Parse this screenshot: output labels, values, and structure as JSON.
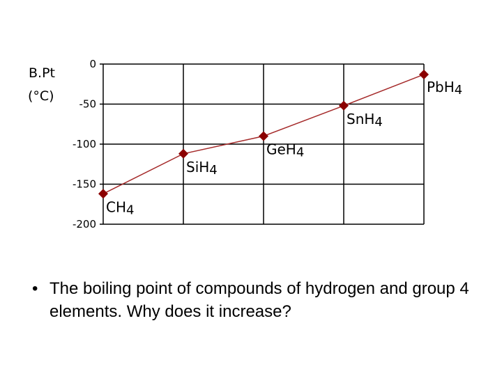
{
  "chart_data": {
    "type": "line",
    "ylabel_line1": "B.Pt",
    "ylabel_line2": "(°C)",
    "ylim": [
      -200,
      0
    ],
    "yticks": [
      0,
      -50,
      -100,
      -150,
      -200
    ],
    "ytick_labels": [
      "0",
      "-50",
      "-100",
      "-150",
      "-200"
    ],
    "grid": true,
    "line_color": "#a52a2a",
    "marker_color": "#8b0000",
    "points": [
      {
        "label": "CH",
        "sub": "4",
        "y": -162
      },
      {
        "label": "SiH",
        "sub": "4",
        "y": -112
      },
      {
        "label": "GeH",
        "sub": "4",
        "y": -90
      },
      {
        "label": "SnH",
        "sub": "4",
        "y": -52
      },
      {
        "label": "PbH",
        "sub": "4",
        "y": -13
      }
    ]
  },
  "caption": {
    "bullet": "•",
    "text": "The boiling point of compounds of hydrogen and group 4 elements. Why does it increase?"
  }
}
